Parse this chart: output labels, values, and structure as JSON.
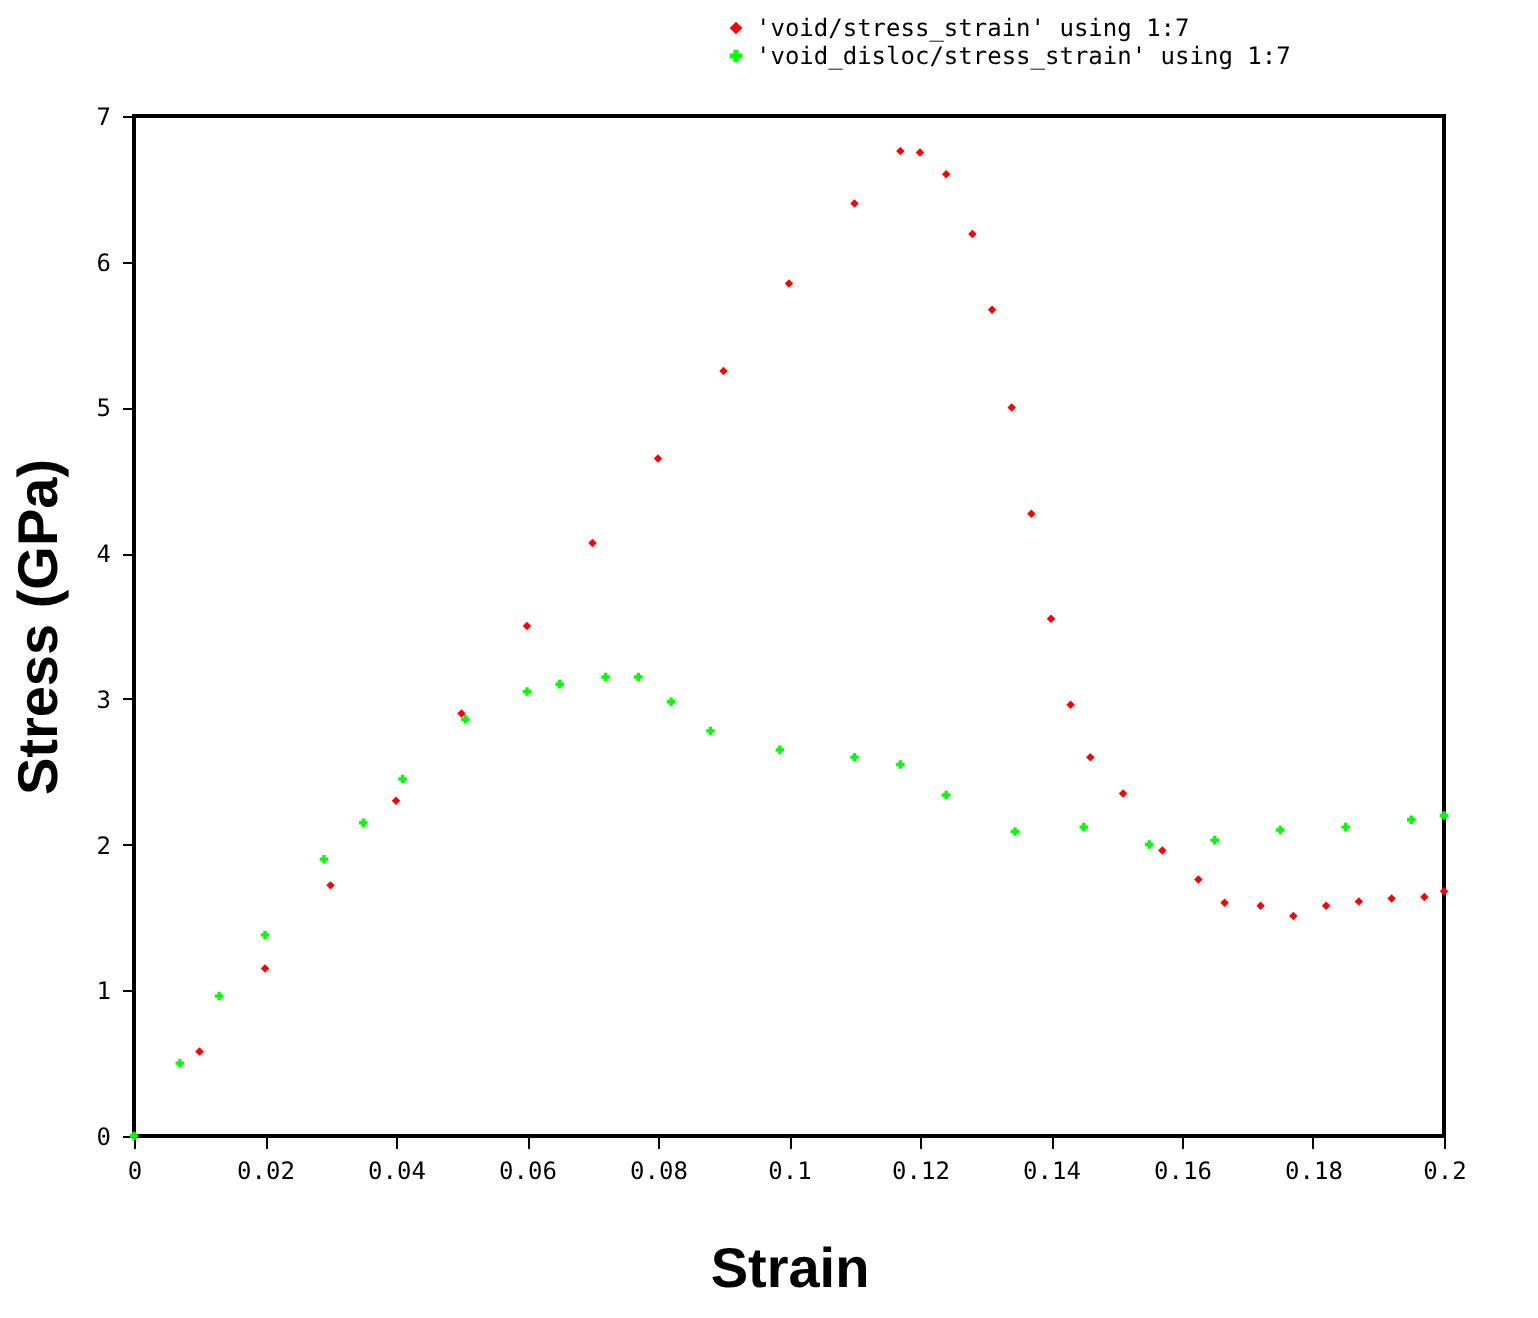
{
  "chart_data": {
    "type": "scatter",
    "xlabel": "Strain",
    "ylabel": "Stress (GPa)",
    "xlim": [
      0,
      0.2
    ],
    "ylim": [
      0,
      7
    ],
    "xticks": [
      0,
      0.02,
      0.04,
      0.06,
      0.08,
      0.1,
      0.12,
      0.14,
      0.16,
      0.18,
      0.2
    ],
    "yticks": [
      0,
      1,
      2,
      3,
      4,
      5,
      6,
      7
    ],
    "grid": false,
    "legend": "top right",
    "series": [
      {
        "name": "'void/stress_strain' using 1:7",
        "color": "#ff0000",
        "marker": "diamond",
        "x": [
          0,
          0.01,
          0.02,
          0.03,
          0.04,
          0.05,
          0.06,
          0.07,
          0.08,
          0.09,
          0.1,
          0.11,
          0.117,
          0.12,
          0.124,
          0.128,
          0.131,
          0.134,
          0.137,
          0.14,
          0.143,
          0.146,
          0.151,
          0.157,
          0.1625,
          0.1665,
          0.172,
          0.177,
          0.182,
          0.187,
          0.192,
          0.197,
          0.2
        ],
        "values": [
          0,
          0.58,
          1.15,
          1.72,
          2.3,
          2.9,
          3.5,
          4.07,
          4.65,
          5.25,
          5.85,
          6.4,
          6.76,
          6.75,
          6.6,
          6.19,
          5.67,
          5.0,
          4.27,
          3.55,
          2.96,
          2.6,
          2.35,
          1.96,
          1.76,
          1.6,
          1.58,
          1.51,
          1.58,
          1.61,
          1.63,
          1.64,
          1.68
        ]
      },
      {
        "name": "'void_disloc/stress_strain' using 1:7",
        "color": "#00ff00",
        "marker": "cross",
        "x": [
          0,
          0.007,
          0.013,
          0.02,
          0.029,
          0.035,
          0.041,
          0.0506,
          0.06,
          0.065,
          0.072,
          0.077,
          0.082,
          0.088,
          0.0986,
          0.11,
          0.117,
          0.124,
          0.1345,
          0.145,
          0.155,
          0.165,
          0.175,
          0.185,
          0.195,
          0.2
        ],
        "values": [
          0,
          0.5,
          0.96,
          1.38,
          1.9,
          2.15,
          2.45,
          2.86,
          3.05,
          3.1,
          3.15,
          3.15,
          2.98,
          2.78,
          2.65,
          2.6,
          2.55,
          2.34,
          2.09,
          2.12,
          2.0,
          2.03,
          2.1,
          2.12,
          2.17,
          2.2
        ]
      }
    ]
  }
}
